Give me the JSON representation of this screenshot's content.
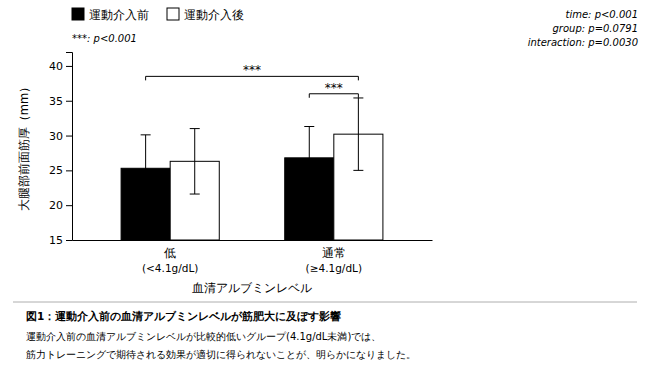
{
  "chart_data": {
    "type": "bar",
    "title": "図1：運動介入前の血清アルブミンレベルが筋肥大に及ぼす影響",
    "caption": [
      "運動介入前の血清アルブミンレベルが比較的低いグループ(4.1g/dL未満)では、",
      "筋力トレーニングで期待される効果が適切に得られないことが、明らかになりました。"
    ],
    "categories": [
      "低",
      "通常"
    ],
    "sublabels": [
      "(<4.1g/dL)",
      "(≥4.1g/dL)"
    ],
    "xlabel": "血清アルブミンレベル",
    "ylabel": "大腿部前面筋厚（mm）",
    "series": [
      {
        "name": "運動介入前",
        "color": "#000000",
        "values": [
          25.3,
          26.8
        ],
        "errors": [
          4.8,
          4.5
        ]
      },
      {
        "name": "運動介入後",
        "color": "#ffffff",
        "values": [
          26.3,
          30.2
        ],
        "errors": [
          4.7,
          5.2
        ]
      }
    ],
    "ylim": [
      15,
      42
    ],
    "yticks": [
      15,
      20,
      25,
      30,
      35,
      40
    ],
    "grid": false,
    "legend": "upper left",
    "brackets": [
      {
        "label": "***",
        "y": 38.5,
        "start": {
          "category": 0,
          "series": 0
        },
        "end": {
          "category": 1,
          "series": 1
        }
      },
      {
        "label": "***",
        "y": 36.0,
        "start": {
          "category": 1,
          "series": 0
        },
        "end": {
          "category": 1,
          "series": 1
        }
      }
    ],
    "significance_note": "***: p<0.001",
    "stats": [
      "time: p<0.001",
      "group: p=0.0791",
      "interaction: p=0.0030"
    ]
  }
}
